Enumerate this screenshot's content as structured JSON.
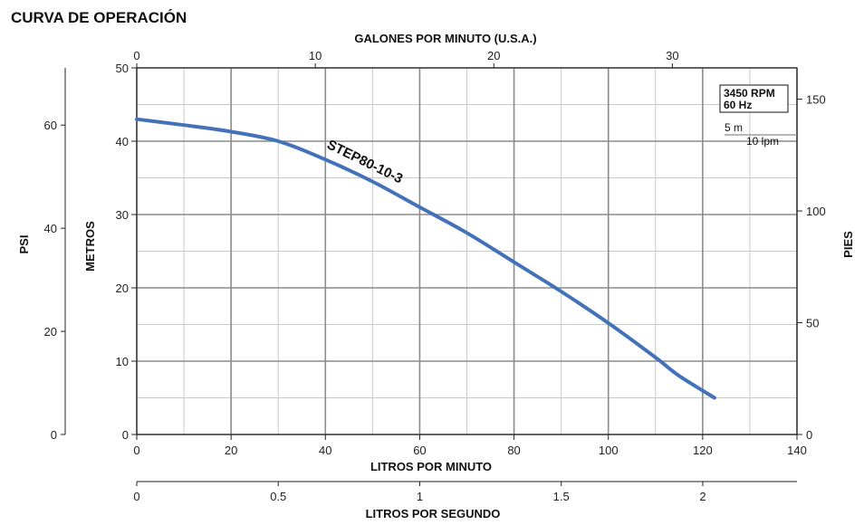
{
  "title": "CURVA DE OPERACIÓN",
  "chart_data": {
    "type": "line",
    "title": "CURVA DE OPERACIÓN",
    "series": [
      {
        "name": "STEP80-10-3",
        "color": "#4472b8",
        "x": [
          0,
          10,
          20,
          30,
          40,
          50,
          60,
          70,
          80,
          90,
          100,
          110,
          115,
          122.5
        ],
        "y": [
          43,
          42.2,
          41.3,
          40,
          37.5,
          34.5,
          31,
          27.5,
          23.5,
          19.5,
          15.2,
          10.5,
          8,
          5
        ]
      }
    ],
    "axes": {
      "x_bottom": {
        "label": "LITROS POR MINUTO",
        "range": [
          0,
          140
        ],
        "ticks": [
          0,
          20,
          40,
          60,
          80,
          100,
          120,
          140
        ]
      },
      "x_top": {
        "label": "GALONES POR MINUTO (U.S.A.)",
        "range": [
          0,
          36.98
        ],
        "ticks": [
          0,
          10,
          20,
          30
        ]
      },
      "x_second": {
        "label": "LITROS POR SEGUNDO",
        "range": [
          0,
          2.333
        ],
        "ticks": [
          "0",
          "0.5",
          "1",
          "1.5",
          "2"
        ]
      },
      "y_left": {
        "label": "METROS",
        "range": [
          0,
          50
        ],
        "ticks": [
          0,
          10,
          20,
          30,
          40,
          50
        ]
      },
      "y_psi": {
        "label": "PSI",
        "range": [
          0,
          71.1
        ],
        "ticks": [
          0,
          20,
          40,
          60
        ]
      },
      "y_right": {
        "label": "PIES",
        "range": [
          0,
          164
        ],
        "ticks": [
          0,
          50,
          100,
          150
        ]
      }
    },
    "grid": {
      "major": true,
      "minor": true
    },
    "annotations": {
      "rpm": "3450 RPM",
      "hz": "60 Hz",
      "scale_m": "5 m",
      "scale_lpm": "10 lpm"
    }
  }
}
